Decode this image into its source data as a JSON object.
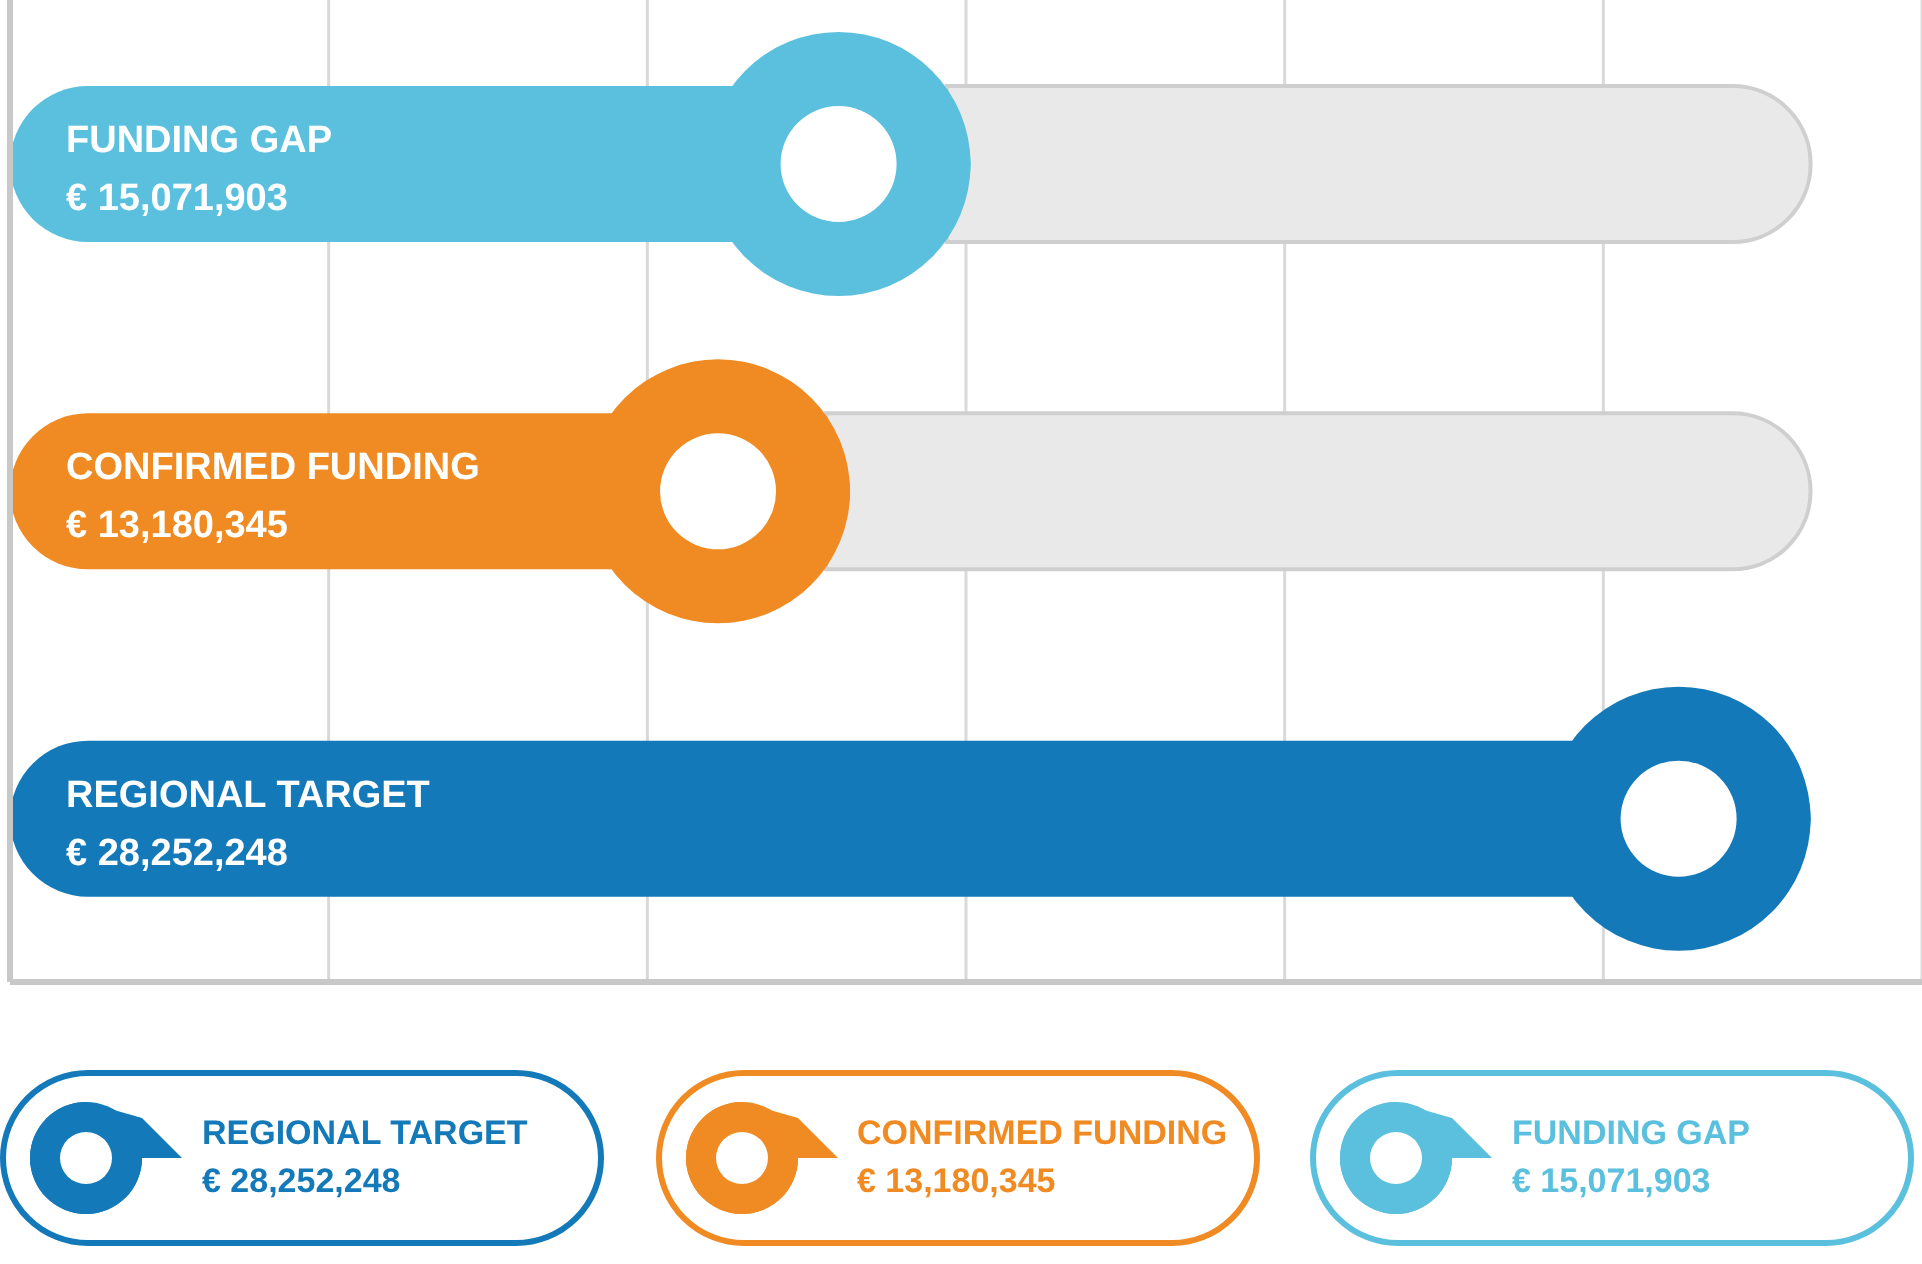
{
  "chart_data": {
    "type": "bar",
    "orientation": "horizontal",
    "categories": [
      "FUNDING GAP",
      "CONFIRMED FUNDING",
      "REGIONAL TARGET"
    ],
    "values": [
      15071903,
      13180345,
      28252248
    ],
    "colors": [
      "#5bc0de",
      "#ef8b22",
      "#1479b8"
    ],
    "value_labels": [
      "€ 15,071,903",
      "€ 13,180,345",
      "€ 28,252,248"
    ],
    "xlim": [
      0,
      30000000
    ],
    "xticks": [
      {
        "value": 5000000,
        "label": null
      },
      {
        "value": 10000000,
        "label": null
      },
      {
        "value": 15000000,
        "label": null
      },
      {
        "value": 20000000,
        "label": null
      },
      {
        "value": 25000000,
        "label": null
      }
    ],
    "tick_labels": false,
    "grid": "x"
  }
}
